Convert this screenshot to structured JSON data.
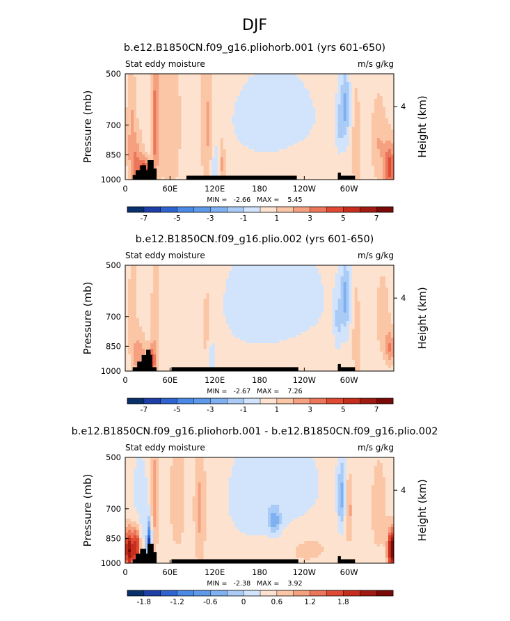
{
  "figure": {
    "title": "DJF"
  },
  "colors": {
    "scale": [
      "#08306b",
      "#1e3ea8",
      "#2f63d0",
      "#4a8ae6",
      "#7fb0f2",
      "#a9cbf6",
      "#d2e4fb",
      "#fde3cf",
      "#fbc6a6",
      "#f5a07f",
      "#ec7659",
      "#e04a32",
      "#c72d1c",
      "#a11a12",
      "#7a0a08"
    ],
    "terrain": "#000000"
  },
  "chart_data": [
    {
      "type": "heatmap",
      "title": "b.e12.B1850CN.f09_g16.pliohorb.001 (yrs 601-650)",
      "left_label": "Stat eddy moisture",
      "right_label": "m/s g/kg",
      "xlabel": "",
      "ylabel": "Pressure (mb)",
      "y2label": "Height (km)",
      "x_ticks": [
        "0",
        "60E",
        "120E",
        "180",
        "120W",
        "60W"
      ],
      "y_ticks": [
        "500",
        "700",
        "850",
        "1000"
      ],
      "y2_ticks": [
        "4"
      ],
      "min_max": "MIN =   -2.66   MAX =    5.45",
      "colorbar_labels": [
        "-7",
        "-5",
        "-3",
        "-1",
        "1",
        "3",
        "5",
        "7"
      ],
      "colorbar_levels": [
        -8,
        -7,
        -6,
        -5,
        -4,
        -3,
        -2,
        -1,
        0,
        1,
        2,
        3,
        4,
        5,
        6,
        7,
        8
      ],
      "colorbar_colors": [
        "#08306b",
        "#1e3ea8",
        "#2f63d0",
        "#4a8ae6",
        "#5f9aea",
        "#7fb0f2",
        "#a9cbf6",
        "#d2e4fb",
        "#fde3cf",
        "#fbc6a6",
        "#f5a07f",
        "#ec7659",
        "#e04a32",
        "#c72d1c",
        "#a11a12",
        "#7a0a08"
      ],
      "background": 0.5,
      "features": [
        {
          "lon": 15,
          "p": 920,
          "wl": 8,
          "wp": 180,
          "v": 2.5
        },
        {
          "lon": 25,
          "p": 950,
          "wl": 6,
          "wp": 80,
          "v": 4.5
        },
        {
          "lon": 40,
          "p": 700,
          "wl": 5,
          "wp": 300,
          "v": 3.0
        },
        {
          "lon": 8,
          "p": 700,
          "wl": 6,
          "wp": 300,
          "v": 1.5
        },
        {
          "lon": 60,
          "p": 700,
          "wl": 15,
          "wp": 400,
          "v": 1.2
        },
        {
          "lon": 110,
          "p": 700,
          "wl": 8,
          "wp": 300,
          "v": 1.8
        },
        {
          "lon": 200,
          "p": 680,
          "wl": 60,
          "wp": 220,
          "v": -1.2
        },
        {
          "lon": 120,
          "p": 950,
          "wl": 5,
          "wp": 150,
          "v": -1.5
        },
        {
          "lon": 130,
          "p": 900,
          "wl": 4,
          "wp": 150,
          "v": 1.8
        },
        {
          "lon": 295,
          "p": 620,
          "wl": 6,
          "wp": 160,
          "v": -2.6
        },
        {
          "lon": 287,
          "p": 700,
          "wl": 5,
          "wp": 140,
          "v": -1.5
        },
        {
          "lon": 230,
          "p": 900,
          "wl": 60,
          "wp": 150,
          "v": 0.4
        },
        {
          "lon": 310,
          "p": 800,
          "wl": 5,
          "wp": 250,
          "v": 1.5
        },
        {
          "lon": 355,
          "p": 930,
          "wl": 8,
          "wp": 150,
          "v": 4.0
        },
        {
          "lon": 340,
          "p": 780,
          "wl": 10,
          "wp": 200,
          "v": 1.5
        }
      ],
      "terrain": [
        {
          "lon": [
            10,
            36
          ],
          "p": 970
        },
        {
          "lon": [
            14,
            30
          ],
          "p": 940
        },
        {
          "lon": [
            20,
            28
          ],
          "p": 910
        },
        {
          "lon": [
            30,
            42
          ],
          "p": 930
        },
        {
          "lon": [
            30,
            38
          ],
          "p": 880
        },
        {
          "lon": [
            82,
            230
          ],
          "p": 975
        },
        {
          "lon": [
            285,
            308
          ],
          "p": 975
        },
        {
          "lon": [
            285,
            289
          ],
          "p": 955
        }
      ]
    },
    {
      "type": "heatmap",
      "title": "b.e12.B1850CN.f09_g16.plio.002 (yrs 601-650)",
      "left_label": "Stat eddy moisture",
      "right_label": "m/s g/kg",
      "xlabel": "",
      "ylabel": "Pressure (mb)",
      "y2label": "Height (km)",
      "x_ticks": [
        "0",
        "60E",
        "120E",
        "180",
        "120W",
        "60W"
      ],
      "y_ticks": [
        "500",
        "700",
        "850",
        "1000"
      ],
      "y2_ticks": [
        "4"
      ],
      "min_max": "MIN =   -2.67   MAX =    7.26",
      "colorbar_labels": [
        "-7",
        "-5",
        "-3",
        "-1",
        "1",
        "3",
        "5",
        "7"
      ],
      "colorbar_levels": [
        -8,
        -7,
        -6,
        -5,
        -4,
        -3,
        -2,
        -1,
        0,
        1,
        2,
        3,
        4,
        5,
        6,
        7,
        8
      ],
      "colorbar_colors": [
        "#08306b",
        "#1e3ea8",
        "#2f63d0",
        "#4a8ae6",
        "#5f9aea",
        "#7fb0f2",
        "#a9cbf6",
        "#d2e4fb",
        "#fde3cf",
        "#fbc6a6",
        "#f5a07f",
        "#ec7659",
        "#e04a32",
        "#c72d1c",
        "#a11a12",
        "#7a0a08"
      ],
      "background": 0.4,
      "features": [
        {
          "lon": 20,
          "p": 930,
          "wl": 8,
          "wp": 150,
          "v": 2.5
        },
        {
          "lon": 35,
          "p": 940,
          "wl": 5,
          "wp": 90,
          "v": 4.0
        },
        {
          "lon": 40,
          "p": 720,
          "wl": 5,
          "wp": 300,
          "v": 1.5
        },
        {
          "lon": 10,
          "p": 700,
          "wl": 6,
          "wp": 300,
          "v": 1.3
        },
        {
          "lon": 110,
          "p": 760,
          "wl": 8,
          "wp": 250,
          "v": 1.2
        },
        {
          "lon": 200,
          "p": 650,
          "wl": 65,
          "wp": 250,
          "v": -1.2
        },
        {
          "lon": 115,
          "p": 940,
          "wl": 6,
          "wp": 150,
          "v": -1.5
        },
        {
          "lon": 295,
          "p": 620,
          "wl": 6,
          "wp": 160,
          "v": -2.6
        },
        {
          "lon": 285,
          "p": 720,
          "wl": 5,
          "wp": 140,
          "v": -1.5
        },
        {
          "lon": 230,
          "p": 900,
          "wl": 60,
          "wp": 150,
          "v": 0.5
        },
        {
          "lon": 310,
          "p": 800,
          "wl": 5,
          "wp": 250,
          "v": 1.5
        },
        {
          "lon": 355,
          "p": 860,
          "wl": 6,
          "wp": 100,
          "v": 2.5
        },
        {
          "lon": 345,
          "p": 700,
          "wl": 10,
          "wp": 200,
          "v": 1.2
        }
      ],
      "terrain": [
        {
          "lon": [
            10,
            42
          ],
          "p": 975
        },
        {
          "lon": [
            16,
            36
          ],
          "p": 940
        },
        {
          "lon": [
            22,
            36
          ],
          "p": 900
        },
        {
          "lon": [
            28,
            34
          ],
          "p": 870
        },
        {
          "lon": [
            62,
            232
          ],
          "p": 975
        },
        {
          "lon": [
            285,
            308
          ],
          "p": 975
        },
        {
          "lon": [
            285,
            289
          ],
          "p": 955
        }
      ]
    },
    {
      "type": "heatmap",
      "title": "b.e12.B1850CN.f09_g16.pliohorb.001 - b.e12.B1850CN.f09_g16.plio.002",
      "left_label": "Stat eddy moisture",
      "right_label": "m/s g/kg",
      "xlabel": "",
      "ylabel": "Pressure (mb)",
      "y2label": "Height (km)",
      "x_ticks": [
        "0",
        "60E",
        "120E",
        "180",
        "120W",
        "60W"
      ],
      "y_ticks": [
        "500",
        "700",
        "850",
        "1000"
      ],
      "y2_ticks": [
        "4"
      ],
      "min_max": "MIN =   -2.38   MAX =    3.92",
      "colorbar_labels": [
        "-1.8",
        "-1.2",
        "-0.6",
        "0",
        "0.6",
        "1.2",
        "1.8"
      ],
      "colorbar_levels": [
        -2.4,
        -2.1,
        -1.8,
        -1.5,
        -1.2,
        -0.9,
        -0.6,
        -0.3,
        0,
        0.3,
        0.6,
        0.9,
        1.2,
        1.5,
        1.8,
        2.1,
        2.4
      ],
      "colorbar_colors": [
        "#08306b",
        "#1e3ea8",
        "#2f63d0",
        "#4a8ae6",
        "#5f9aea",
        "#7fb0f2",
        "#a9cbf6",
        "#d2e4fb",
        "#fde3cf",
        "#fbc6a6",
        "#f5a07f",
        "#ec7659",
        "#e04a32",
        "#c72d1c",
        "#a11a12",
        "#7a0a08"
      ],
      "background": 0.1,
      "features": [
        {
          "lon": 5,
          "p": 920,
          "wl": 6,
          "wp": 120,
          "v": 2.0
        },
        {
          "lon": 15,
          "p": 900,
          "wl": 5,
          "wp": 120,
          "v": 1.6
        },
        {
          "lon": 32,
          "p": 900,
          "wl": 3,
          "wp": 120,
          "v": -2.3
        },
        {
          "lon": 40,
          "p": 650,
          "wl": 5,
          "wp": 250,
          "v": 0.7
        },
        {
          "lon": 70,
          "p": 650,
          "wl": 10,
          "wp": 250,
          "v": 0.5
        },
        {
          "lon": 100,
          "p": 700,
          "wl": 8,
          "wp": 300,
          "v": 0.6
        },
        {
          "lon": 20,
          "p": 700,
          "wl": 10,
          "wp": 200,
          "v": -0.3
        },
        {
          "lon": 200,
          "p": 650,
          "wl": 60,
          "wp": 250,
          "v": -0.3
        },
        {
          "lon": 200,
          "p": 760,
          "wl": 8,
          "wp": 60,
          "v": -0.8
        },
        {
          "lon": 290,
          "p": 650,
          "wl": 5,
          "wp": 150,
          "v": -0.8
        },
        {
          "lon": 300,
          "p": 700,
          "wl": 5,
          "wp": 150,
          "v": 0.6
        },
        {
          "lon": 240,
          "p": 900,
          "wl": 50,
          "wp": 150,
          "v": 0.3
        },
        {
          "lon": 340,
          "p": 700,
          "wl": 10,
          "wp": 200,
          "v": 0.5
        },
        {
          "lon": 358,
          "p": 920,
          "wl": 6,
          "wp": 120,
          "v": 2.4
        }
      ],
      "terrain": [
        {
          "lon": [
            10,
            36
          ],
          "p": 975
        },
        {
          "lon": [
            14,
            30
          ],
          "p": 940
        },
        {
          "lon": [
            20,
            28
          ],
          "p": 910
        },
        {
          "lon": [
            30,
            42
          ],
          "p": 930
        },
        {
          "lon": [
            30,
            38
          ],
          "p": 880
        },
        {
          "lon": [
            62,
            232
          ],
          "p": 975
        },
        {
          "lon": [
            285,
            308
          ],
          "p": 975
        },
        {
          "lon": [
            285,
            289
          ],
          "p": 955
        }
      ]
    }
  ]
}
